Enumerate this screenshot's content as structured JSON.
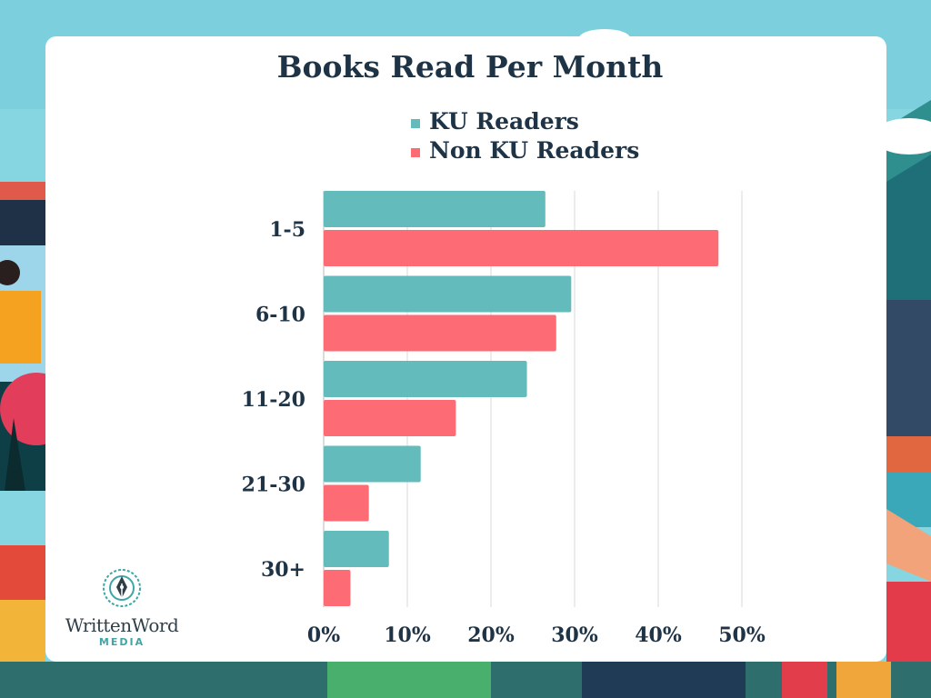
{
  "brand": {
    "name": "WrittenWord",
    "sub": "MEDIA"
  },
  "chart_data": {
    "type": "bar",
    "orientation": "horizontal",
    "title": "Books Read Per Month",
    "categories": [
      "1-5",
      "6-10",
      "11-20",
      "21-30",
      "30+"
    ],
    "series": [
      {
        "name": "KU Readers",
        "color": "#63bbbb",
        "values": [
          26.5,
          29.6,
          24.3,
          11.6,
          7.8
        ]
      },
      {
        "name": "Non KU Readers",
        "color": "#fd6b74",
        "values": [
          47.2,
          27.8,
          15.8,
          5.4,
          3.2
        ]
      }
    ],
    "xlim": [
      0,
      50
    ],
    "xticks": [
      "0%",
      "10%",
      "20%",
      "30%",
      "40%",
      "50%"
    ],
    "xlabel": "",
    "ylabel": "",
    "grid": true,
    "legend": "top"
  }
}
